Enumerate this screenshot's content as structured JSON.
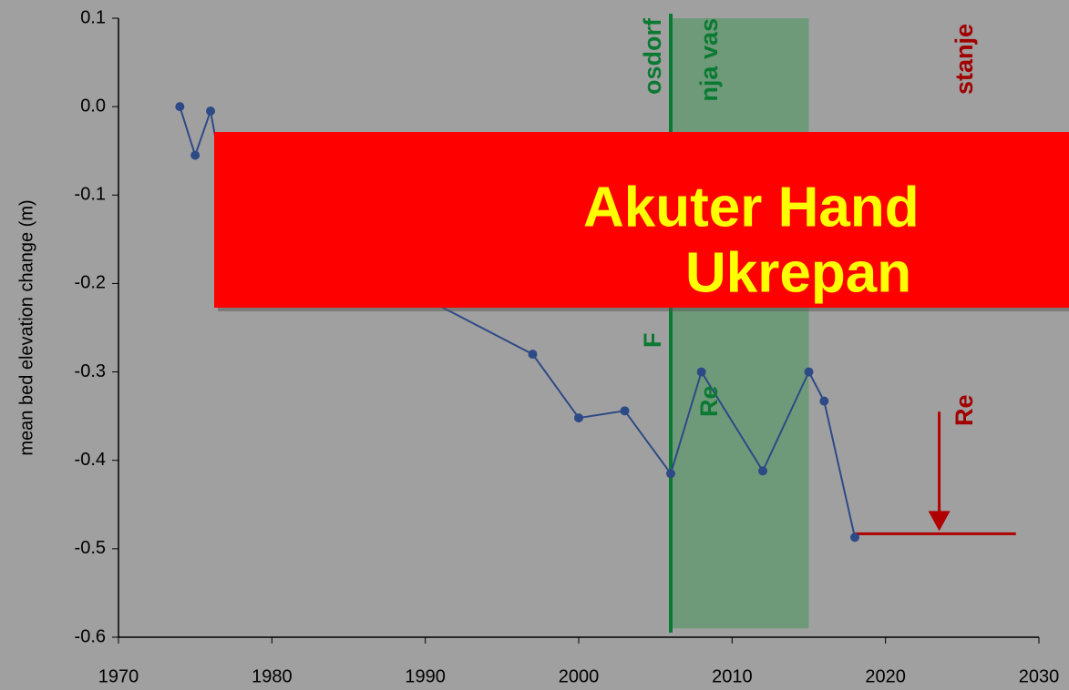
{
  "chart_data": {
    "type": "line",
    "y_label": "mean bed elevation change (m)",
    "xlim": [
      1970,
      2030
    ],
    "ylim": [
      -0.6,
      0.1
    ],
    "xticks": [
      1970,
      1980,
      1990,
      2000,
      2010,
      2020,
      2030
    ],
    "yticks": [
      0.1,
      {
        "value": 0,
        "label": "0.0"
      },
      -0.1,
      -0.2,
      -0.3,
      -0.4,
      -0.5,
      -0.6
    ],
    "series": [
      {
        "color": "#2e4a86",
        "x": [
          1974,
          1975,
          1976,
          1977,
          1997,
          2000,
          2003,
          2006,
          2008,
          2012,
          2015,
          2016,
          2018
        ],
        "values": [
          0,
          -0.055,
          -0.005,
          -0.1,
          -0.28,
          -0.352,
          -0.344,
          -0.415,
          -0.3,
          -0.412,
          -0.3,
          -0.333,
          -0.487
        ]
      }
    ],
    "span": {
      "x0": 2006,
      "x1": 2015,
      "y0": 0.1,
      "y1": -0.59,
      "color": "#6f9a7a"
    },
    "vline": {
      "x": 2006,
      "color": "#0a7a32"
    },
    "hline": {
      "x0": 2018,
      "x1": 2028.5,
      "y": -0.483,
      "color": "#b00000"
    },
    "arrow": {
      "x": 2023.5,
      "y0": -0.345,
      "y1": -0.48,
      "color": "#b00000"
    },
    "labels": [
      {
        "top": "osdorf",
        "bottom": "F",
        "color": "#0a7a32"
      },
      {
        "top": "nja vas",
        "bottom": "Re",
        "color": "#0a7a32"
      },
      {
        "top": "stanje",
        "bottom": "Re",
        "color": "#a00000"
      }
    ]
  },
  "banner": {
    "lines": [
      "Akuter Hand",
      "Ukrepan"
    ]
  }
}
